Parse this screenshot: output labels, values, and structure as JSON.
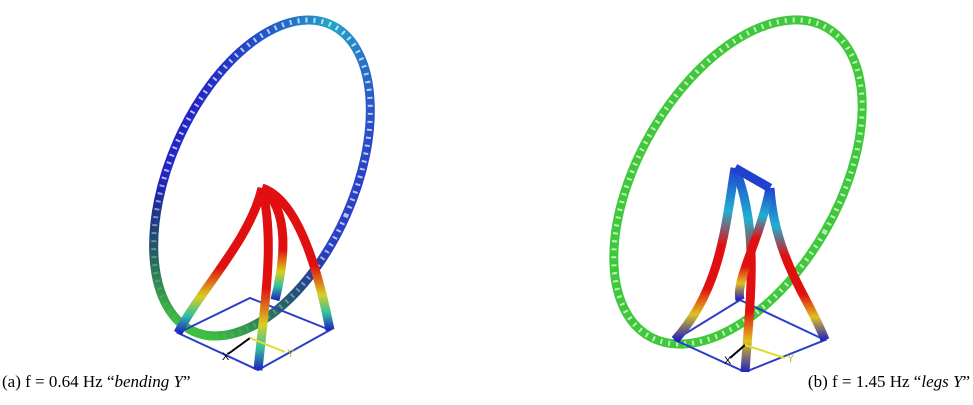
{
  "panels": [
    {
      "caption": {
        "prefix": "(a) f = 0.64 Hz “",
        "emphasis": "bending Y",
        "suffix": "”"
      },
      "axis_labels": [
        "X",
        "Y"
      ]
    },
    {
      "caption": {
        "prefix": "(b) f = 1.45 Hz “",
        "emphasis": "legs Y",
        "suffix": "”"
      },
      "axis_labels": [
        "X",
        "Y"
      ]
    }
  ]
}
